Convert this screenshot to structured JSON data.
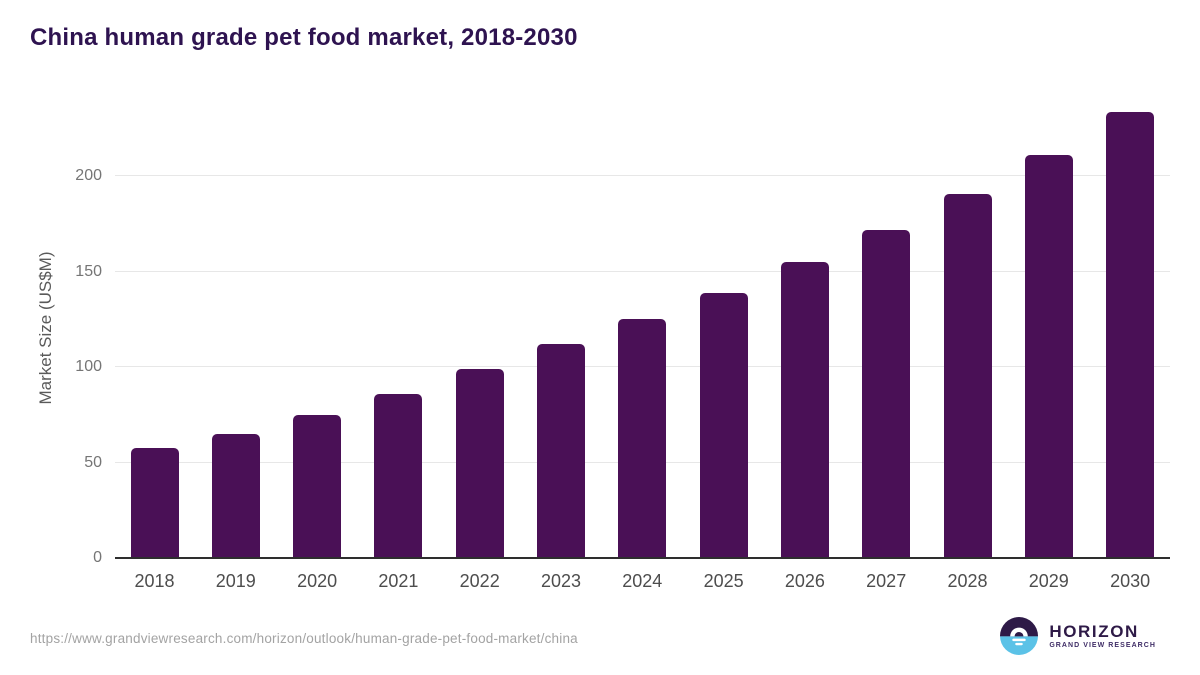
{
  "header": {
    "title": "China human grade pet food market, 2018-2030",
    "title_color": "#2e1350"
  },
  "chart_data": {
    "type": "bar",
    "title": "China human grade pet food market, 2018-2030",
    "categories": [
      "2018",
      "2019",
      "2020",
      "2021",
      "2022",
      "2023",
      "2024",
      "2025",
      "2026",
      "2027",
      "2028",
      "2029",
      "2030"
    ],
    "values": [
      57.5,
      65,
      75,
      86,
      99,
      112,
      125,
      139,
      155,
      172,
      190.5,
      211,
      233.5
    ],
    "xlabel": "",
    "ylabel": "Market Size (US$M)",
    "ylim": [
      0,
      240
    ],
    "yticks": [
      0,
      50,
      100,
      150,
      200
    ],
    "grid": true,
    "legend": false,
    "bar_color": "#4a1056",
    "gridline_color": "#e7e7e7",
    "axis_line_color": "#2e2e2e",
    "ytick_label_color": "#757575",
    "xtick_label_color": "#4d4d4d",
    "ylabel_color": "#5a5a5a"
  },
  "footer": {
    "source_url": "https://www.grandviewresearch.com/horizon/outlook/human-grade-pet-food-market/china",
    "source_color": "#a3a3a3",
    "logo": {
      "name": "HORIZON",
      "subtitle": "GRAND VIEW RESEARCH",
      "name_color": "#2e1a47",
      "subtitle_color": "#3f2d66",
      "circle_top_color": "#2e1a47",
      "circle_bottom_color": "#5bc2e7"
    }
  }
}
